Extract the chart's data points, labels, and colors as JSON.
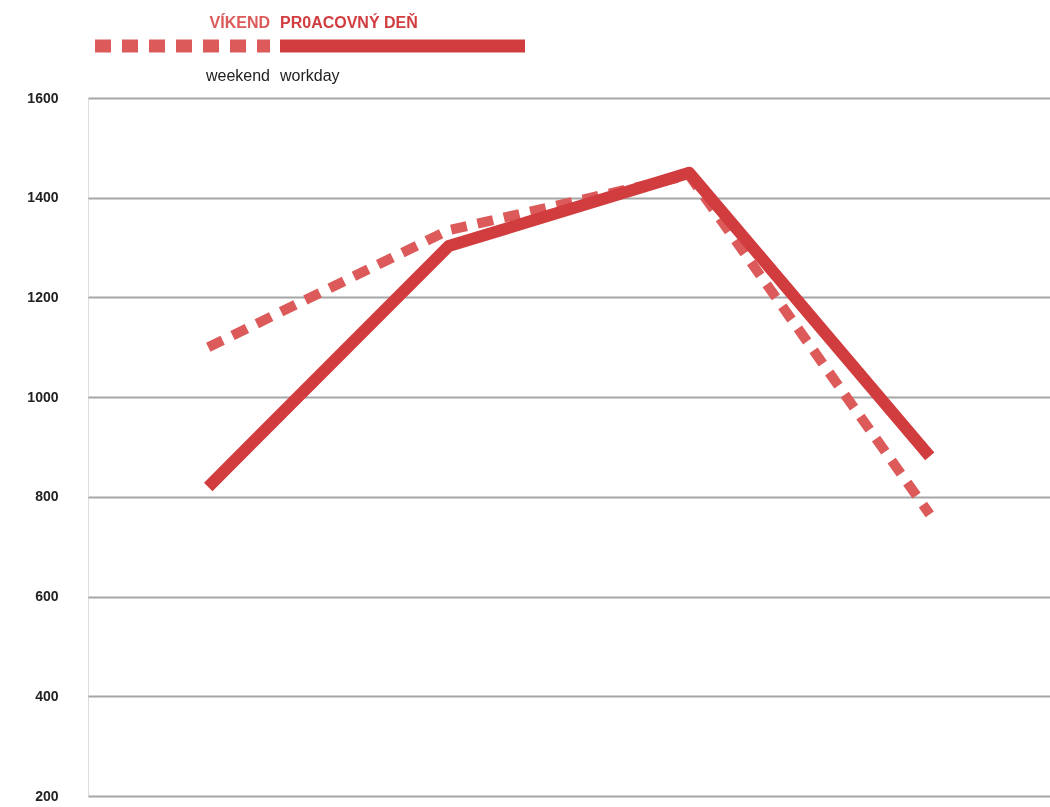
{
  "chart_data": {
    "type": "line",
    "categories": [
      null,
      null,
      null,
      null
    ],
    "series": [
      {
        "name": "VÍKEND",
        "color": "#dc5a5a",
        "line_style": "dashed",
        "values": [
          1100,
          1335,
          1445,
          765
        ]
      },
      {
        "name": "PR0ACOVNÝ DEŇ",
        "color": "#d13c3e",
        "line_style": "solid",
        "values": [
          820,
          1303,
          1450,
          881
        ]
      }
    ],
    "annotations": [
      "weekend",
      "workday"
    ],
    "ylim": [
      200,
      1600
    ],
    "yticks": [
      200,
      400,
      600,
      800,
      1000,
      1200,
      1400,
      1600
    ],
    "grid": "y",
    "legend": "top left",
    "marker": "none"
  }
}
